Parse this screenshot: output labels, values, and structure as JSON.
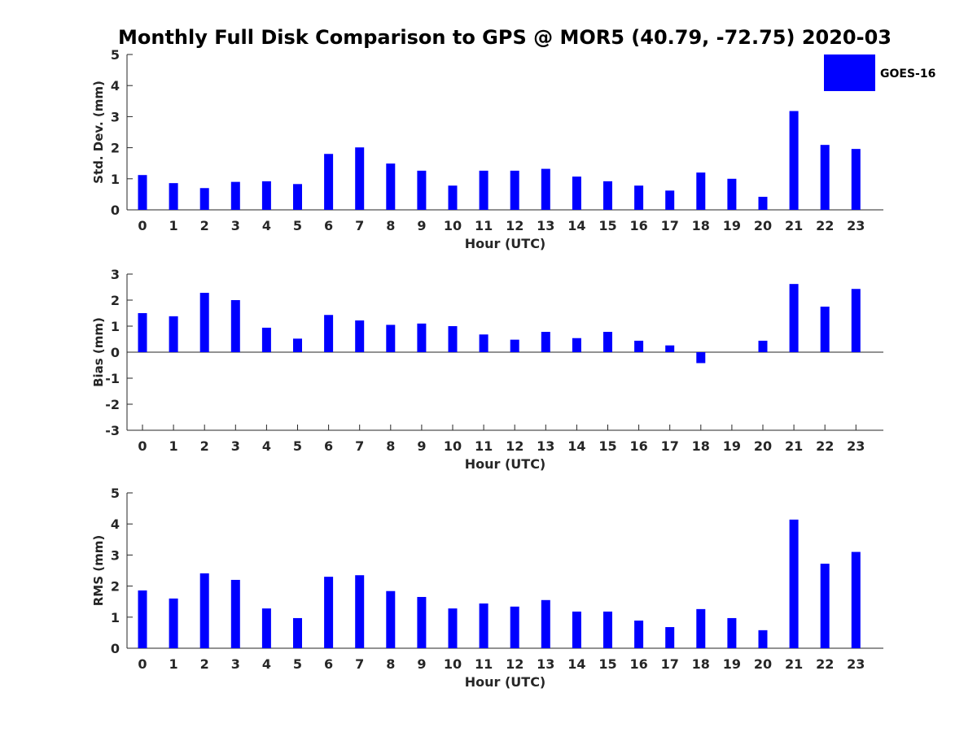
{
  "title": "Monthly Full Disk Comparison to GPS @ MOR5 (40.79, -72.75) 2020-03",
  "legend": {
    "label": "GOES-16",
    "color": "#0000ff"
  },
  "chart_data": [
    {
      "type": "bar",
      "name": "std-dev",
      "xlabel": "Hour (UTC)",
      "ylabel": "Std. Dev. (mm)",
      "ylim": [
        0,
        5
      ],
      "yticks": [
        0,
        1,
        2,
        3,
        4,
        5
      ],
      "categories": [
        "0",
        "1",
        "2",
        "3",
        "4",
        "5",
        "6",
        "7",
        "8",
        "9",
        "10",
        "11",
        "12",
        "13",
        "14",
        "15",
        "16",
        "17",
        "18",
        "19",
        "20",
        "21",
        "22",
        "23"
      ],
      "values": [
        1.12,
        0.86,
        0.7,
        0.9,
        0.92,
        0.83,
        1.8,
        2.01,
        1.49,
        1.26,
        0.78,
        1.26,
        1.26,
        1.32,
        1.07,
        0.92,
        0.78,
        0.62,
        1.2,
        1.0,
        0.42,
        3.18,
        2.09,
        1.96
      ],
      "color": "#0000ff"
    },
    {
      "type": "bar",
      "name": "bias",
      "xlabel": "Hour (UTC)",
      "ylabel": "Bias (mm)",
      "ylim": [
        -3,
        3
      ],
      "yticks": [
        -3,
        -2,
        -1,
        0,
        1,
        2,
        3
      ],
      "categories": [
        "0",
        "1",
        "2",
        "3",
        "4",
        "5",
        "6",
        "7",
        "8",
        "9",
        "10",
        "11",
        "12",
        "13",
        "14",
        "15",
        "16",
        "17",
        "18",
        "19",
        "20",
        "21",
        "22",
        "23"
      ],
      "values": [
        1.5,
        1.38,
        2.28,
        2.0,
        0.94,
        0.52,
        1.43,
        1.22,
        1.05,
        1.1,
        1.0,
        0.68,
        0.48,
        0.78,
        0.54,
        0.78,
        0.44,
        0.26,
        -0.42,
        0.0,
        0.44,
        2.62,
        1.75,
        2.43
      ],
      "color": "#0000ff"
    },
    {
      "type": "bar",
      "name": "rms",
      "xlabel": "Hour (UTC)",
      "ylabel": "RMS (mm)",
      "ylim": [
        0,
        5
      ],
      "yticks": [
        0,
        1,
        2,
        3,
        4,
        5
      ],
      "categories": [
        "0",
        "1",
        "2",
        "3",
        "4",
        "5",
        "6",
        "7",
        "8",
        "9",
        "10",
        "11",
        "12",
        "13",
        "14",
        "15",
        "16",
        "17",
        "18",
        "19",
        "20",
        "21",
        "22",
        "23"
      ],
      "values": [
        1.86,
        1.6,
        2.41,
        2.2,
        1.28,
        0.97,
        2.3,
        2.35,
        1.84,
        1.65,
        1.28,
        1.44,
        1.34,
        1.55,
        1.18,
        1.18,
        0.89,
        0.68,
        1.26,
        0.97,
        0.58,
        4.14,
        2.72,
        3.1
      ],
      "color": "#0000ff"
    }
  ]
}
